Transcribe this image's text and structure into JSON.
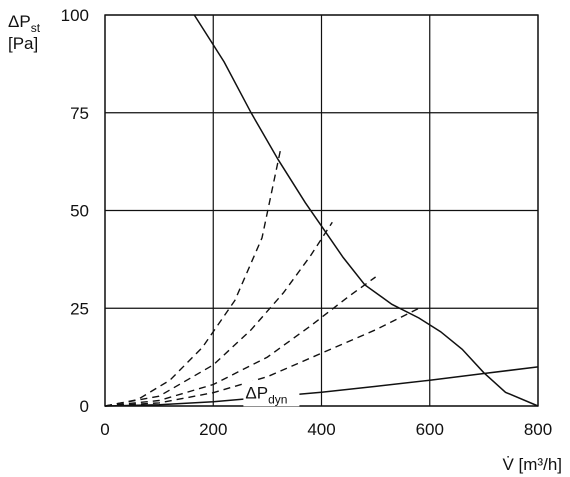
{
  "chart_data": {
    "type": "line",
    "xlabel": "V̇ [m³/h]",
    "ylabel_main": "ΔP",
    "ylabel_sub": "st",
    "ylabel_unit": "[Pa]",
    "xlim": [
      0,
      800
    ],
    "ylim": [
      0,
      100
    ],
    "x_ticks": [
      "0",
      "200",
      "400",
      "600",
      "800"
    ],
    "y_ticks": [
      "0",
      "25",
      "50",
      "75",
      "100"
    ],
    "grid": true,
    "series": [
      {
        "style": "solid",
        "points": [
          [
            165,
            100
          ],
          [
            220,
            88
          ],
          [
            270,
            75
          ],
          [
            320,
            63
          ],
          [
            370,
            52
          ],
          [
            400,
            46
          ],
          [
            440,
            38
          ],
          [
            480,
            31
          ],
          [
            530,
            26
          ],
          [
            580,
            22.5
          ],
          [
            620,
            19
          ],
          [
            660,
            14.5
          ],
          [
            700,
            8.5
          ],
          [
            740,
            3.5
          ],
          [
            800,
            0
          ]
        ]
      },
      {
        "style": "dashed",
        "points": [
          [
            0,
            0
          ],
          [
            60,
            1.6
          ],
          [
            120,
            6.6
          ],
          [
            180,
            15
          ],
          [
            240,
            27
          ],
          [
            290,
            43
          ],
          [
            325,
            66
          ]
        ]
      },
      {
        "style": "dashed",
        "points": [
          [
            0,
            0
          ],
          [
            100,
            2.5
          ],
          [
            200,
            10.5
          ],
          [
            270,
            19.5
          ],
          [
            330,
            29
          ],
          [
            380,
            38.5
          ],
          [
            420,
            47
          ]
        ]
      },
      {
        "style": "dashed",
        "points": [
          [
            0,
            0
          ],
          [
            100,
            1.4
          ],
          [
            200,
            5.5
          ],
          [
            300,
            12.5
          ],
          [
            380,
            20.5
          ],
          [
            450,
            28
          ],
          [
            500,
            33
          ]
        ]
      },
      {
        "style": "dashed",
        "points": [
          [
            0,
            0
          ],
          [
            100,
            0.8
          ],
          [
            200,
            3.4
          ],
          [
            300,
            7.5
          ],
          [
            400,
            13.5
          ],
          [
            500,
            19.5
          ],
          [
            580,
            25
          ]
        ]
      },
      {
        "style": "solid",
        "points": [
          [
            0,
            0
          ],
          [
            100,
            0.3
          ],
          [
            200,
            1.1
          ],
          [
            300,
            2.3
          ],
          [
            400,
            3.5
          ],
          [
            500,
            5
          ],
          [
            600,
            6.6
          ],
          [
            700,
            8.3
          ],
          [
            800,
            10
          ]
        ]
      }
    ],
    "annotations": [
      {
        "text_main": "ΔP",
        "text_sub": "dyn",
        "x": 470,
        "y": 3.5
      }
    ]
  }
}
